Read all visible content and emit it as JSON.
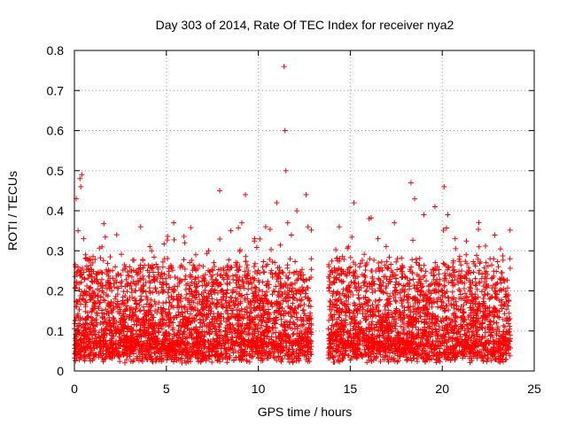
{
  "chart_data": {
    "type": "scatter",
    "title": "Day 303 of 2014, Rate Of TEC Index for receiver nya2",
    "xlabel": "GPS time / hours",
    "ylabel": "ROTI / TECUs",
    "xlim": [
      0,
      25
    ],
    "ylim": [
      0,
      0.8
    ],
    "xticks": [
      0,
      5,
      10,
      15,
      20,
      25
    ],
    "yticks": [
      0,
      0.1,
      0.2,
      0.3,
      0.4,
      0.5,
      0.6,
      0.7,
      0.8
    ],
    "xtick_labels": [
      "0",
      "5",
      "10",
      "15",
      "20",
      "25"
    ],
    "ytick_labels": [
      "0",
      "0.1",
      "0.2",
      "0.3",
      "0.4",
      "0.5",
      "0.6",
      "0.7",
      "0.8"
    ],
    "grid": true,
    "marker": "+",
    "color": "#ff0000",
    "data_gap_hours": [
      12.9,
      13.8
    ],
    "points": [
      {
        "x": 0.1,
        "y": 0.43
      },
      {
        "x": 0.3,
        "y": 0.48
      },
      {
        "x": 0.35,
        "y": 0.46
      },
      {
        "x": 0.4,
        "y": 0.49
      },
      {
        "x": 0.2,
        "y": 0.35
      },
      {
        "x": 0.5,
        "y": 0.33
      },
      {
        "x": 0.6,
        "y": 0.29
      },
      {
        "x": 0.1,
        "y": 0.22
      },
      {
        "x": 1.0,
        "y": 0.27
      },
      {
        "x": 1.5,
        "y": 0.31
      },
      {
        "x": 2.3,
        "y": 0.34
      },
      {
        "x": 3.0,
        "y": 0.26
      },
      {
        "x": 3.6,
        "y": 0.36
      },
      {
        "x": 4.2,
        "y": 0.3
      },
      {
        "x": 5.4,
        "y": 0.37
      },
      {
        "x": 6.0,
        "y": 0.32
      },
      {
        "x": 6.6,
        "y": 0.29
      },
      {
        "x": 7.3,
        "y": 0.3
      },
      {
        "x": 7.9,
        "y": 0.45
      },
      {
        "x": 8.5,
        "y": 0.35
      },
      {
        "x": 9.1,
        "y": 0.37
      },
      {
        "x": 9.3,
        "y": 0.44
      },
      {
        "x": 9.8,
        "y": 0.33
      },
      {
        "x": 10.4,
        "y": 0.36
      },
      {
        "x": 11.0,
        "y": 0.42
      },
      {
        "x": 11.4,
        "y": 0.76
      },
      {
        "x": 11.45,
        "y": 0.6
      },
      {
        "x": 11.5,
        "y": 0.5
      },
      {
        "x": 11.6,
        "y": 0.37
      },
      {
        "x": 12.1,
        "y": 0.4
      },
      {
        "x": 12.6,
        "y": 0.44
      },
      {
        "x": 12.7,
        "y": 0.36
      },
      {
        "x": 14.4,
        "y": 0.36
      },
      {
        "x": 14.9,
        "y": 0.31
      },
      {
        "x": 15.2,
        "y": 0.42
      },
      {
        "x": 15.9,
        "y": 0.27
      },
      {
        "x": 16.5,
        "y": 0.33
      },
      {
        "x": 17.4,
        "y": 0.37
      },
      {
        "x": 18.3,
        "y": 0.47
      },
      {
        "x": 18.5,
        "y": 0.43
      },
      {
        "x": 19.0,
        "y": 0.39
      },
      {
        "x": 19.6,
        "y": 0.41
      },
      {
        "x": 20.1,
        "y": 0.46
      },
      {
        "x": 20.3,
        "y": 0.39
      },
      {
        "x": 20.7,
        "y": 0.33
      },
      {
        "x": 21.3,
        "y": 0.29
      },
      {
        "x": 22.0,
        "y": 0.31
      },
      {
        "x": 22.6,
        "y": 0.28
      },
      {
        "x": 23.2,
        "y": 0.22
      },
      {
        "x": 23.6,
        "y": 0.19
      }
    ]
  }
}
